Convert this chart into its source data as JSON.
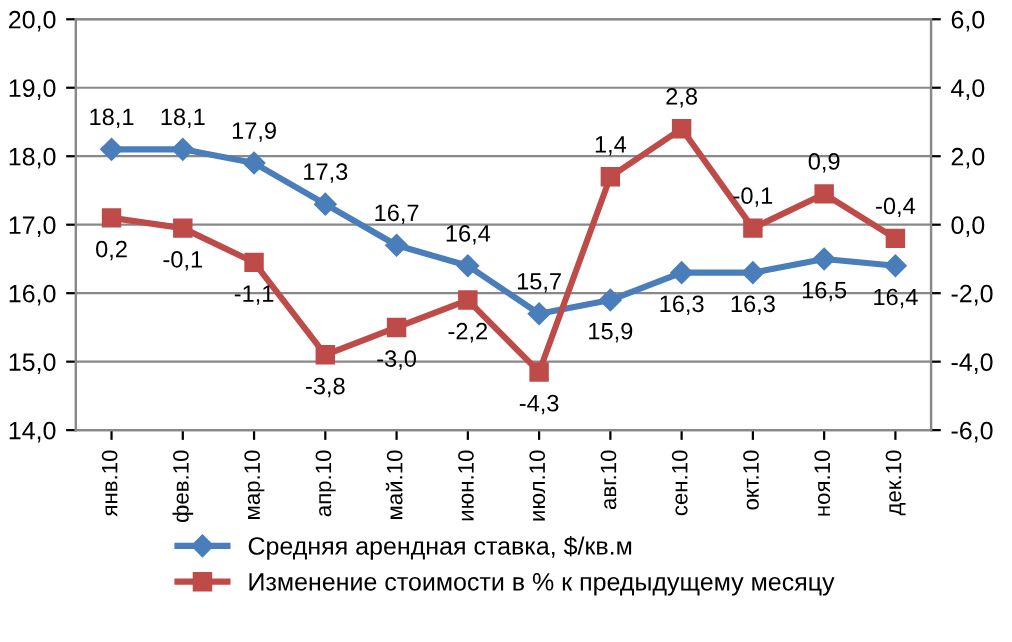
{
  "chart_data": {
    "type": "line",
    "categories": [
      "янв.10",
      "фев.10",
      "мар.10",
      "апр.10",
      "май.10",
      "июн.10",
      "июл.10",
      "авг.10",
      "сен.10",
      "окт.10",
      "ноя.10",
      "дек.10"
    ],
    "series": [
      {
        "name": "Средняя арендная ставка, $/кв.м",
        "color": "#4a7ebb",
        "marker": "diamond",
        "values": [
          18.1,
          18.1,
          17.9,
          17.3,
          16.7,
          16.4,
          15.7,
          15.9,
          16.3,
          16.3,
          16.5,
          16.4
        ],
        "value_labels": [
          "18,1",
          "18,1",
          "17,9",
          "17,3",
          "16,7",
          "16,4",
          "15,7",
          "15,9",
          "16,3",
          "16,3",
          "16,5",
          "16,4"
        ]
      },
      {
        "name": "Изменение стоимости в % к предыдущему месяцу",
        "color": "#be4b48",
        "marker": "square",
        "axis": "y2",
        "values": [
          0.2,
          -0.1,
          -1.1,
          -3.8,
          -3.0,
          -2.2,
          -4.3,
          1.4,
          2.8,
          -0.1,
          0.9,
          -0.4
        ],
        "value_labels": [
          "0,2",
          "-0,1",
          "-1,1",
          "-3,8",
          "-3,0",
          "-2,2",
          "-4,3",
          "1,4",
          "2,8",
          "-0,1",
          "0,9",
          "-0,4"
        ]
      }
    ],
    "ylim": [
      14,
      20
    ],
    "yticks": [
      {
        "value": 14,
        "label": "14,0"
      },
      {
        "value": 15,
        "label": "15,0"
      },
      {
        "value": 16,
        "label": "16,0"
      },
      {
        "value": 17,
        "label": "17,0"
      },
      {
        "value": 18,
        "label": "18,0"
      },
      {
        "value": 19,
        "label": "19,0"
      },
      {
        "value": 20,
        "label": "20,0"
      }
    ],
    "y2lim": [
      -6,
      6
    ],
    "y2ticks": [
      {
        "value": -6,
        "label": "-6,0"
      },
      {
        "value": -4,
        "label": "-4,0"
      },
      {
        "value": -2,
        "label": "-2,0"
      },
      {
        "value": 0,
        "label": "0,0"
      },
      {
        "value": 2,
        "label": "2,0"
      },
      {
        "value": 4,
        "label": "4,0"
      },
      {
        "value": 6,
        "label": "6,0"
      }
    ],
    "grid": "y",
    "legend": "bottom",
    "line_style": "solid"
  }
}
